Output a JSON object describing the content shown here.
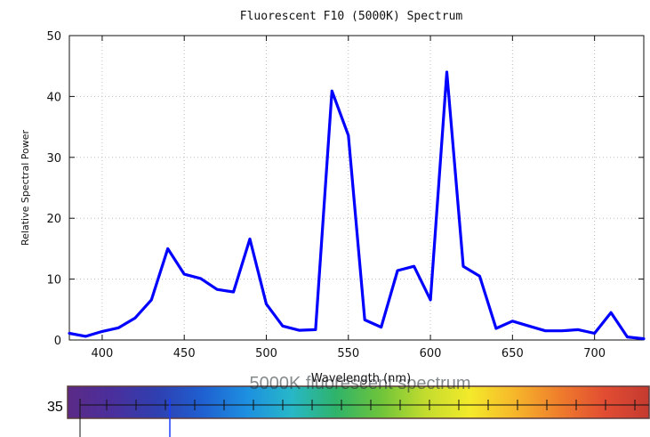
{
  "chart_data": {
    "type": "line",
    "title": "Fluorescent F10 (5000K) Spectrum",
    "xlabel": "Wavelength (nm)",
    "ylabel": "Relative Spectral Power",
    "xlim": [
      380,
      730
    ],
    "ylim": [
      0,
      50
    ],
    "x_ticks": [
      400,
      450,
      500,
      550,
      600,
      650,
      700
    ],
    "y_ticks": [
      0,
      10,
      20,
      30,
      40,
      50
    ],
    "grid": true,
    "line_color": "#0000ff",
    "series": [
      {
        "x": [
          380,
          390,
          400,
          410,
          420,
          430,
          440,
          450,
          460,
          470,
          480,
          490,
          500,
          510,
          520,
          530,
          540,
          550,
          560,
          570,
          580,
          590,
          600,
          610,
          620,
          630,
          640,
          650,
          660,
          670,
          680,
          690,
          700,
          710,
          720,
          730
        ],
        "y": [
          1.1,
          0.6,
          1.4,
          2.0,
          3.6,
          6.6,
          15.0,
          10.8,
          10.1,
          8.3,
          7.9,
          16.6,
          5.9,
          2.3,
          1.6,
          1.7,
          40.9,
          33.6,
          3.3,
          2.1,
          11.4,
          12.1,
          6.6,
          44.0,
          12.1,
          10.5,
          1.9,
          3.1,
          2.3,
          1.5,
          1.5,
          1.7,
          1.1,
          4.5,
          0.5,
          0.2
        ]
      }
    ]
  },
  "overlay": {
    "ghost_title": "5000K fluorescent spectrum",
    "number_label": "35",
    "spectrum_colors": [
      "#5b2a86",
      "#4a2f9c",
      "#2f3fb0",
      "#1f5fd0",
      "#1d8fe0",
      "#27b7c8",
      "#2fb36a",
      "#6ec43a",
      "#c3dc2e",
      "#f4ea2a",
      "#f6b62b",
      "#ef7d2c",
      "#e24d32",
      "#c43a30"
    ]
  }
}
